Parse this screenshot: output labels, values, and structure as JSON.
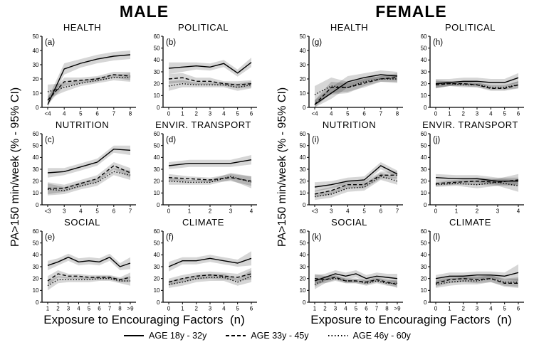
{
  "figure": {
    "groups": [
      {
        "title": "MALE",
        "ylabel": "PA>150 min/week (% - 95% CI)",
        "xlabel": "Exposure to Encouraging Factors  (n)"
      },
      {
        "title": "FEMALE",
        "ylabel": "PA>150 min/week (% - 95% CI)",
        "xlabel": "Exposure to Encouraging Factors  (n)"
      }
    ],
    "legend": [
      {
        "label": "AGE 18y - 32y",
        "style": "solid"
      },
      {
        "label": "AGE 33y - 45y",
        "style": "dashed"
      },
      {
        "label": "AGE 46y - 60y",
        "style": "dotted"
      }
    ],
    "line_color": "#000000",
    "band_color": "rgba(0,0,0,0.16)"
  },
  "chart_data": [
    {
      "id": "a",
      "group": 0,
      "title": "HEALTH",
      "type": "line",
      "ylim": [
        0,
        50
      ],
      "yticks": [
        0,
        10,
        20,
        30,
        40,
        50
      ],
      "categories": [
        "<4",
        "4",
        "5",
        "6",
        "7",
        "8"
      ],
      "series": [
        {
          "name": "AGE 18y - 32y",
          "style": "solid",
          "values": [
            2,
            27,
            31,
            34,
            36,
            37
          ],
          "ci": [
            4,
            4,
            3,
            3,
            3,
            3
          ]
        },
        {
          "name": "AGE 33y - 45y",
          "style": "dashed",
          "values": [
            5,
            18,
            19,
            20,
            23,
            22
          ],
          "ci": [
            3,
            3,
            2,
            2,
            2,
            3
          ]
        },
        {
          "name": "AGE 46y - 60y",
          "style": "dotted",
          "values": [
            11,
            14,
            17,
            19,
            21,
            21
          ],
          "ci": [
            5,
            3,
            2,
            2,
            2,
            3
          ]
        }
      ]
    },
    {
      "id": "b",
      "group": 0,
      "title": "POLITICAL",
      "type": "line",
      "ylim": [
        0,
        60
      ],
      "yticks": [
        0,
        10,
        20,
        30,
        40,
        50,
        60
      ],
      "categories": [
        "0",
        "1",
        "2",
        "3",
        "4",
        "5",
        "6"
      ],
      "series": [
        {
          "name": "AGE 18y - 32y",
          "style": "solid",
          "values": [
            33,
            34,
            35,
            34,
            37,
            29,
            38
          ],
          "ci": [
            5,
            4,
            3,
            3,
            3,
            3,
            4
          ]
        },
        {
          "name": "AGE 33y - 45y",
          "style": "dashed",
          "values": [
            24,
            25,
            22,
            22,
            20,
            19,
            20
          ],
          "ci": [
            4,
            4,
            3,
            3,
            2,
            3,
            3
          ]
        },
        {
          "name": "AGE 46y - 60y",
          "style": "dotted",
          "values": [
            18,
            20,
            19,
            19,
            19,
            17,
            19
          ],
          "ci": [
            4,
            3,
            2,
            2,
            2,
            3,
            3
          ]
        }
      ]
    },
    {
      "id": "c",
      "group": 0,
      "title": "NUTRITION",
      "type": "line",
      "ylim": [
        0,
        60
      ],
      "yticks": [
        0,
        10,
        20,
        30,
        40,
        50,
        60
      ],
      "categories": [
        "<3",
        "3",
        "4",
        "5",
        "6",
        "7"
      ],
      "series": [
        {
          "name": "AGE 18y - 32y",
          "style": "solid",
          "values": [
            27,
            28,
            32,
            36,
            47,
            46
          ],
          "ci": [
            4,
            3,
            3,
            3,
            3,
            4
          ]
        },
        {
          "name": "AGE 33y - 45y",
          "style": "dashed",
          "values": [
            14,
            14,
            18,
            22,
            33,
            27
          ],
          "ci": [
            5,
            3,
            3,
            3,
            3,
            4
          ]
        },
        {
          "name": "AGE 46y - 60y",
          "style": "dotted",
          "values": [
            13,
            12,
            16,
            19,
            28,
            25
          ],
          "ci": [
            5,
            3,
            3,
            3,
            3,
            4
          ]
        }
      ]
    },
    {
      "id": "d",
      "group": 0,
      "title": "ENVIR. TRANSPORT",
      "type": "line",
      "ylim": [
        0,
        60
      ],
      "yticks": [
        0,
        10,
        20,
        30,
        40,
        50,
        60
      ],
      "categories": [
        "0",
        "1",
        "2",
        "3",
        "4"
      ],
      "series": [
        {
          "name": "AGE 18y - 32y",
          "style": "solid",
          "values": [
            33,
            35,
            35,
            35,
            38
          ],
          "ci": [
            3,
            3,
            3,
            3,
            4
          ]
        },
        {
          "name": "AGE 33y - 45y",
          "style": "dashed",
          "values": [
            23,
            22,
            21,
            23,
            20
          ],
          "ci": [
            3,
            2,
            2,
            3,
            4
          ]
        },
        {
          "name": "AGE 46y - 60y",
          "style": "dotted",
          "values": [
            20,
            19,
            19,
            24,
            19
          ],
          "ci": [
            3,
            2,
            2,
            3,
            5
          ]
        }
      ]
    },
    {
      "id": "e",
      "group": 0,
      "title": "SOCIAL",
      "type": "line",
      "ylim": [
        0,
        60
      ],
      "yticks": [
        0,
        10,
        20,
        30,
        40,
        50,
        60
      ],
      "categories": [
        "1",
        "2",
        "3",
        "4",
        "5",
        "6",
        "7",
        "8",
        ">9"
      ],
      "series": [
        {
          "name": "AGE 18y - 32y",
          "style": "solid",
          "values": [
            31,
            34,
            38,
            34,
            35,
            34,
            38,
            30,
            33
          ],
          "ci": [
            4,
            3,
            3,
            3,
            3,
            3,
            3,
            3,
            5
          ]
        },
        {
          "name": "AGE 33y - 45y",
          "style": "dashed",
          "values": [
            18,
            24,
            22,
            22,
            21,
            21,
            21,
            19,
            21
          ],
          "ci": [
            4,
            3,
            2,
            2,
            2,
            2,
            2,
            2,
            4
          ]
        },
        {
          "name": "AGE 46y - 60y",
          "style": "dotted",
          "values": [
            14,
            19,
            19,
            19,
            19,
            20,
            20,
            18,
            18
          ],
          "ci": [
            4,
            3,
            2,
            2,
            2,
            2,
            2,
            2,
            4
          ]
        }
      ]
    },
    {
      "id": "f",
      "group": 0,
      "title": "CLIMATE",
      "type": "line",
      "ylim": [
        0,
        60
      ],
      "yticks": [
        0,
        10,
        20,
        30,
        40,
        50,
        60
      ],
      "categories": [
        "0",
        "1",
        "2",
        "3",
        "4",
        "5",
        "6"
      ],
      "series": [
        {
          "name": "AGE 18y - 32y",
          "style": "solid",
          "values": [
            30,
            35,
            35,
            37,
            35,
            33,
            37
          ],
          "ci": [
            4,
            3,
            3,
            3,
            3,
            3,
            6
          ]
        },
        {
          "name": "AGE 33y - 45y",
          "style": "dashed",
          "values": [
            17,
            20,
            22,
            23,
            22,
            21,
            24
          ],
          "ci": [
            3,
            3,
            3,
            3,
            3,
            3,
            5
          ]
        },
        {
          "name": "AGE 46y - 60y",
          "style": "dotted",
          "values": [
            15,
            17,
            20,
            21,
            21,
            17,
            22
          ],
          "ci": [
            3,
            3,
            3,
            3,
            3,
            3,
            5
          ]
        }
      ]
    },
    {
      "id": "g",
      "group": 1,
      "title": "HEALTH",
      "type": "line",
      "ylim": [
        0,
        50
      ],
      "yticks": [
        0,
        10,
        20,
        30,
        40,
        50
      ],
      "categories": [
        "<4",
        "4",
        "5",
        "6",
        "7",
        "8"
      ],
      "series": [
        {
          "name": "AGE 18y - 32y",
          "style": "solid",
          "values": [
            2,
            10,
            18,
            21,
            23,
            22
          ],
          "ci": [
            3,
            4,
            4,
            3,
            3,
            3
          ]
        },
        {
          "name": "AGE 33y - 45y",
          "style": "dashed",
          "values": [
            2,
            14,
            14,
            17,
            20,
            21
          ],
          "ci": [
            3,
            4,
            3,
            3,
            2,
            3
          ]
        },
        {
          "name": "AGE 46y - 60y",
          "style": "dotted",
          "values": [
            9,
            15,
            14,
            18,
            20,
            20
          ],
          "ci": [
            6,
            6,
            4,
            3,
            2,
            3
          ]
        }
      ]
    },
    {
      "id": "h",
      "group": 1,
      "title": "POLITICAL",
      "type": "line",
      "ylim": [
        0,
        60
      ],
      "yticks": [
        0,
        10,
        20,
        30,
        40,
        50,
        60
      ],
      "categories": [
        "0",
        "1",
        "2",
        "3",
        "4",
        "5",
        "6"
      ],
      "series": [
        {
          "name": "AGE 18y - 32y",
          "style": "solid",
          "values": [
            20,
            21,
            22,
            22,
            21,
            21,
            25
          ],
          "ci": [
            4,
            3,
            3,
            3,
            3,
            3,
            4
          ]
        },
        {
          "name": "AGE 33y - 45y",
          "style": "dashed",
          "values": [
            19,
            20,
            20,
            19,
            16,
            16,
            19
          ],
          "ci": [
            3,
            2,
            2,
            2,
            2,
            2,
            3
          ]
        },
        {
          "name": "AGE 46y - 60y",
          "style": "dotted",
          "values": [
            20,
            20,
            19,
            19,
            17,
            17,
            19
          ],
          "ci": [
            3,
            2,
            2,
            2,
            2,
            2,
            3
          ]
        }
      ]
    },
    {
      "id": "i",
      "group": 1,
      "title": "NUTRITION",
      "type": "line",
      "ylim": [
        0,
        60
      ],
      "yticks": [
        0,
        10,
        20,
        30,
        40,
        50,
        60
      ],
      "categories": [
        "<3",
        "3",
        "4",
        "5",
        "6",
        "7"
      ],
      "series": [
        {
          "name": "AGE 18y - 32y",
          "style": "solid",
          "values": [
            15,
            17,
            20,
            21,
            33,
            26
          ],
          "ci": [
            4,
            3,
            3,
            3,
            3,
            3
          ]
        },
        {
          "name": "AGE 33y - 45y",
          "style": "dashed",
          "values": [
            9,
            12,
            17,
            17,
            25,
            25
          ],
          "ci": [
            3,
            3,
            3,
            3,
            3,
            3
          ]
        },
        {
          "name": "AGE 46y - 60y",
          "style": "dotted",
          "values": [
            7,
            9,
            14,
            15,
            24,
            20
          ],
          "ci": [
            3,
            3,
            3,
            3,
            3,
            3
          ]
        }
      ]
    },
    {
      "id": "j",
      "group": 1,
      "title": "ENVIR. TRANSPORT",
      "type": "line",
      "ylim": [
        0,
        60
      ],
      "yticks": [
        0,
        10,
        20,
        30,
        40,
        50,
        60
      ],
      "categories": [
        "0",
        "1",
        "2",
        "3",
        "4"
      ],
      "series": [
        {
          "name": "AGE 18y - 32y",
          "style": "solid",
          "values": [
            23,
            22,
            22,
            20,
            20
          ],
          "ci": [
            3,
            3,
            3,
            3,
            3
          ]
        },
        {
          "name": "AGE 33y - 45y",
          "style": "dashed",
          "values": [
            18,
            19,
            20,
            19,
            21
          ],
          "ci": [
            2,
            2,
            3,
            3,
            5
          ]
        },
        {
          "name": "AGE 46y - 60y",
          "style": "dotted",
          "values": [
            17,
            18,
            17,
            19,
            16
          ],
          "ci": [
            2,
            2,
            3,
            3,
            5
          ]
        }
      ]
    },
    {
      "id": "k",
      "group": 1,
      "title": "SOCIAL",
      "type": "line",
      "ylim": [
        0,
        60
      ],
      "yticks": [
        0,
        10,
        20,
        30,
        40,
        50,
        60
      ],
      "categories": [
        "1",
        "2",
        "3",
        "4",
        "5",
        "6",
        "7",
        "8",
        ">9"
      ],
      "series": [
        {
          "name": "AGE 18y - 32y",
          "style": "solid",
          "values": [
            18,
            21,
            24,
            22,
            24,
            20,
            22,
            21,
            20
          ],
          "ci": [
            5,
            3,
            3,
            3,
            3,
            3,
            3,
            3,
            4
          ]
        },
        {
          "name": "AGE 33y - 45y",
          "style": "dashed",
          "values": [
            20,
            19,
            21,
            18,
            18,
            17,
            19,
            17,
            15
          ],
          "ci": [
            4,
            3,
            2,
            2,
            2,
            2,
            2,
            2,
            3
          ]
        },
        {
          "name": "AGE 46y - 60y",
          "style": "dotted",
          "values": [
            15,
            19,
            20,
            18,
            18,
            16,
            18,
            16,
            16
          ],
          "ci": [
            4,
            3,
            2,
            2,
            2,
            2,
            2,
            2,
            3
          ]
        }
      ]
    },
    {
      "id": "l",
      "group": 1,
      "title": "CLIMATE",
      "type": "line",
      "ylim": [
        0,
        60
      ],
      "yticks": [
        0,
        10,
        20,
        30,
        40,
        50,
        60
      ],
      "categories": [
        "0",
        "1",
        "2",
        "3",
        "4",
        "5",
        "6"
      ],
      "series": [
        {
          "name": "AGE 18y - 32y",
          "style": "solid",
          "values": [
            20,
            22,
            22,
            23,
            23,
            22,
            25
          ],
          "ci": [
            3,
            3,
            3,
            3,
            3,
            3,
            7
          ]
        },
        {
          "name": "AGE 33y - 45y",
          "style": "dashed",
          "values": [
            16,
            19,
            20,
            19,
            20,
            16,
            16
          ],
          "ci": [
            3,
            3,
            3,
            3,
            3,
            3,
            4
          ]
        },
        {
          "name": "AGE 46y - 60y",
          "style": "dotted",
          "values": [
            15,
            17,
            18,
            18,
            20,
            17,
            17
          ],
          "ci": [
            3,
            3,
            3,
            3,
            3,
            3,
            4
          ]
        }
      ]
    }
  ]
}
